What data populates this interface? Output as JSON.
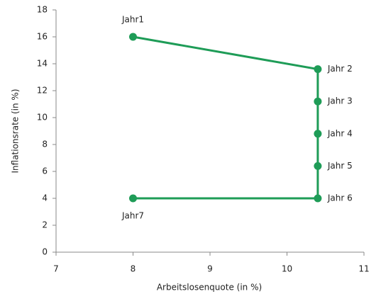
{
  "chart_data": {
    "type": "line",
    "x_label": "Arbeitslosenquote  (in %)",
    "y_label": "Inflationsrate  (in %)",
    "x": [
      8,
      10.4,
      10.4,
      10.4,
      10.4,
      10.4,
      8
    ],
    "series": [
      {
        "color": "#1e9c57",
        "values": [
          16,
          13.6,
          11.2,
          8.8,
          6.4,
          4,
          4
        ],
        "point_labels": [
          "Jahr1",
          "Jahr 2",
          "Jahr 3",
          "Jahr 4",
          "Jahr 5",
          "Jahr 6",
          "Jahr7"
        ]
      }
    ],
    "xlim": [
      7,
      11
    ],
    "xticks": [
      7,
      8,
      9,
      10,
      11
    ],
    "ylim": [
      0,
      18
    ],
    "yticks": [
      0,
      2,
      4,
      6,
      8,
      10,
      12,
      14,
      16,
      18
    ],
    "grid": false
  }
}
